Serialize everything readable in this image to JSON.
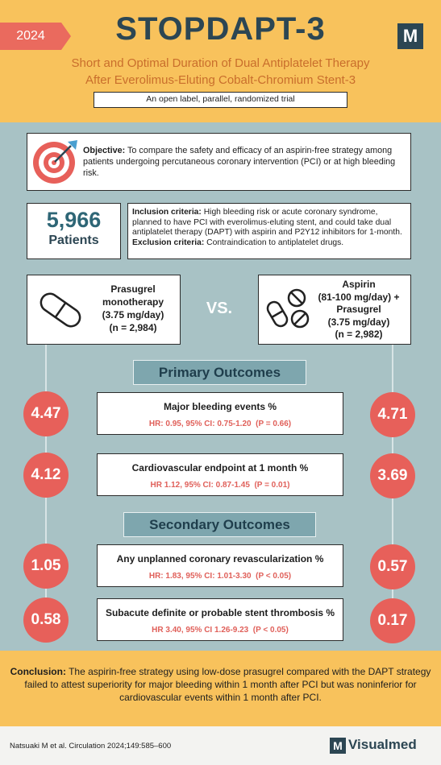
{
  "header": {
    "year": "2024",
    "title": "STOPDAPT-3",
    "logo_mark": "M",
    "subtitle": [
      "Short and Optimal Duration of Dual Antiplatelet Therapy",
      "After Everolimus-Eluting Cobalt-Chromium Stent-3"
    ],
    "design": "An open label, parallel, randomized trial"
  },
  "objective": {
    "label": "Objective:",
    "text": "To compare the safety and efficacy of an aspirin-free strategy among patients undergoing percutaneous coronary intervention (PCI) or at high bleeding risk."
  },
  "patients": {
    "count": "5,966",
    "label": "Patients"
  },
  "criteria": {
    "inclusion_label": "Inclusion criteria:",
    "inclusion_text": "High bleeding risk or acute coronary syndrome, planned to have PCI with everolimus-eluting stent, and could take dual antiplatelet therapy (DAPT) with aspirin and P2Y12 inhibitors for 1-month.",
    "exclusion_label": "Exclusion criteria:",
    "exclusion_text": "Contraindication to antiplatelet drugs."
  },
  "arms": [
    {
      "lines": [
        "Prasugrel",
        "monotherapy",
        "(3.75 mg/day)",
        "(n = 2,984)"
      ]
    },
    {
      "lines": [
        "Aspirin",
        "(81-100 mg/day) +",
        "Prasugrel",
        "(3.75 mg/day)",
        "(n = 2,982)"
      ]
    }
  ],
  "versus": "VS.",
  "sections": [
    {
      "title": "Primary Outcomes",
      "outcomes": [
        {
          "title": "Major bleeding events %",
          "stats": "HR: 0.95, 95% CI: 0.75-1.20  (P = 0.66)",
          "left": 4.47,
          "right": 4.71
        },
        {
          "title": "Cardiovascular endpoint at 1 month %",
          "stats": "HR 1.12, 95% CI: 0.87-1.45  (P = 0.01)",
          "left": 4.12,
          "right": 3.69
        }
      ]
    },
    {
      "title": "Secondary Outcomes",
      "outcomes": [
        {
          "title": "Any unplanned coronary revascularization %",
          "stats": "HR: 1.83, 95% CI: 1.01-3.30  (P < 0.05)",
          "left": 1.05,
          "right": 0.57
        },
        {
          "title": "Subacute definite or probable stent thrombosis %",
          "stats": "HR 3.40, 95% CI 1.26-9.23  (P < 0.05)",
          "left": 0.58,
          "right": 0.17
        }
      ]
    }
  ],
  "conclusion": {
    "label": "Conclusion:",
    "text": "The aspirin-free strategy using low-dose prasugrel compared with the DAPT strategy failed to attest superiority for major bleeding within 1 month after PCI but was noninferior for cardiovascular events within 1 month after PCI."
  },
  "footer": {
    "citation": "Natsuaki M et al. Circulation 2024;149:585–600",
    "brand": "Visualmed"
  }
}
